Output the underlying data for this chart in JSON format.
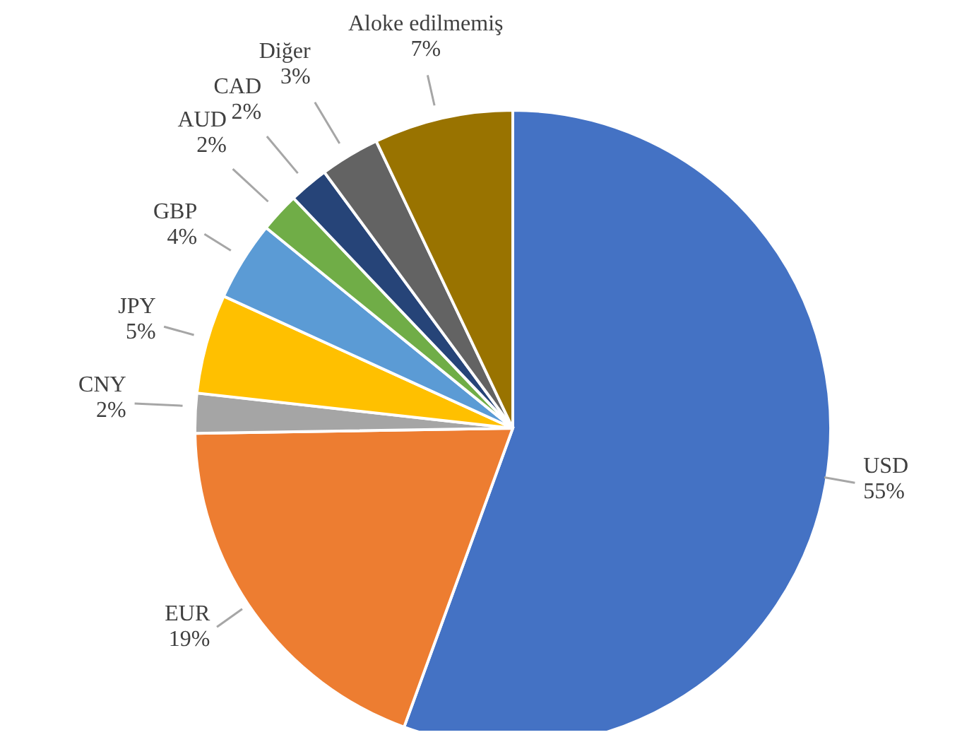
{
  "chart_data": {
    "type": "pie",
    "categories": [
      "USD",
      "EUR",
      "CNY",
      "JPY",
      "GBP",
      "AUD",
      "CAD",
      "Diğer",
      "Aloke edilmemiş"
    ],
    "values": [
      55,
      19,
      2,
      5,
      4,
      2,
      2,
      3,
      7
    ],
    "value_labels": [
      "55%",
      "19%",
      "2%",
      "5%",
      "4%",
      "2%",
      "2%",
      "3%",
      "7%"
    ],
    "colors": [
      "#4472c4",
      "#ed7d31",
      "#a5a5a5",
      "#ffc000",
      "#5b9bd5",
      "#70ad47",
      "#264478",
      "#636363",
      "#997300"
    ]
  }
}
